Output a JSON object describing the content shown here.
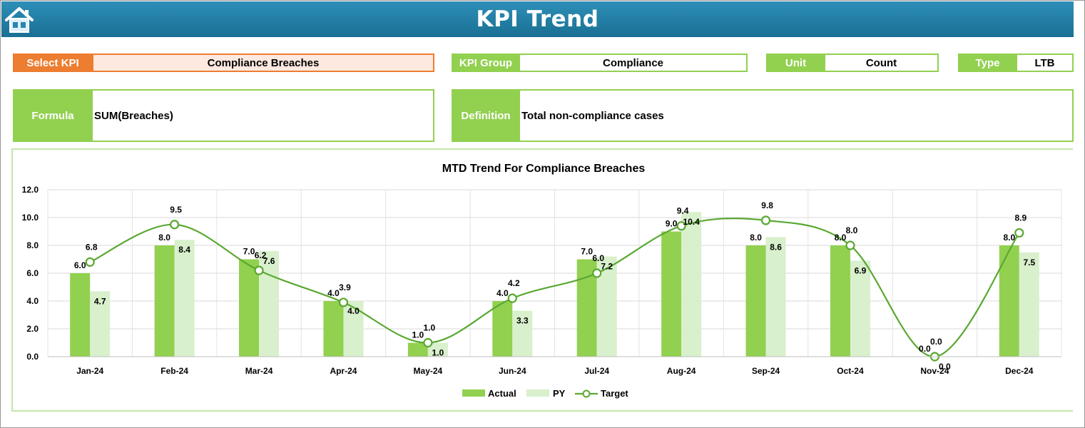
{
  "header": {
    "title": "KPI Trend",
    "home_icon": "home-icon"
  },
  "fields": {
    "select_kpi_label": "Select KPI",
    "select_kpi_value": "Compliance Breaches",
    "kpi_group_label": "KPI Group",
    "kpi_group_value": "Compliance",
    "unit_label": "Unit",
    "unit_value": "Count",
    "type_label": "Type",
    "type_value": "LTB",
    "formula_label": "Formula",
    "formula_value": "SUM(Breaches)",
    "definition_label": "Definition",
    "definition_value": "Total non-compliance cases"
  },
  "colors": {
    "accent": "#92d050",
    "select": "#ed7d31",
    "header": "#1f7ba3",
    "actual": "#92d050",
    "py": "#d8f0cc",
    "target": "#5aa832"
  },
  "chart_data": {
    "type": "bar",
    "title": "MTD Trend For Compliance Breaches",
    "categories": [
      "Jan-24",
      "Feb-24",
      "Mar-24",
      "Apr-24",
      "May-24",
      "Jun-24",
      "Jul-24",
      "Aug-24",
      "Sep-24",
      "Oct-24",
      "Nov-24",
      "Dec-24"
    ],
    "ylim": [
      0,
      12
    ],
    "yticks": [
      "0.0",
      "2.0",
      "4.0",
      "6.0",
      "8.0",
      "10.0",
      "12.0"
    ],
    "grid": true,
    "legend_position": "bottom",
    "series": [
      {
        "name": "Actual",
        "type": "bar",
        "values": [
          6.0,
          8.0,
          7.0,
          4.0,
          1.0,
          4.0,
          7.0,
          9.0,
          8.0,
          8.0,
          0.0,
          8.0
        ]
      },
      {
        "name": "PY",
        "type": "bar",
        "values": [
          4.7,
          8.4,
          7.6,
          4.0,
          1.0,
          3.3,
          7.2,
          10.4,
          8.6,
          6.9,
          0.0,
          7.5
        ]
      },
      {
        "name": "Target",
        "type": "line",
        "values": [
          6.8,
          9.5,
          6.2,
          3.9,
          1.0,
          4.2,
          6.0,
          9.4,
          9.8,
          8.0,
          0.0,
          8.9
        ]
      }
    ]
  }
}
